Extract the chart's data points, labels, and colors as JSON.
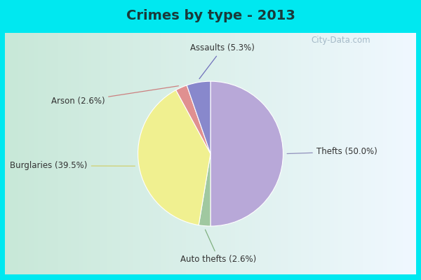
{
  "title": "Crimes by type - 2013",
  "slices": [
    {
      "label": "Thefts (50.0%)",
      "value": 50.0,
      "color": "#b8a8d8"
    },
    {
      "label": "Auto thefts (2.6%)",
      "value": 2.6,
      "color": "#a0c8a0"
    },
    {
      "label": "Burglaries (39.5%)",
      "value": 39.5,
      "color": "#f0f090"
    },
    {
      "label": "Arson (2.6%)",
      "value": 2.6,
      "color": "#e09090"
    },
    {
      "label": "Assaults (5.3%)",
      "value": 5.3,
      "color": "#8888cc"
    }
  ],
  "startangle": 90,
  "background_cyan": "#00e8f0",
  "background_grad_left": "#c8e8d8",
  "background_grad_right": "#e8f0f8",
  "title_fontsize": 14,
  "label_fontsize": 8.5,
  "watermark": "City-Data.com",
  "cyan_border": 7,
  "title_bar_height": 0.115
}
